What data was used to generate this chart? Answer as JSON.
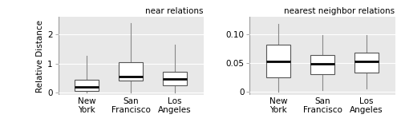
{
  "title_left": "near relations",
  "title_right": "nearest neighbor relations",
  "ylabel": "Relative Distance",
  "categories": [
    "New\nYork",
    "San\nFrancisco",
    "Los\nAngeles"
  ],
  "bg_color": "#e8e8e8",
  "box_facecolor": "white",
  "median_color": "black",
  "box_edge_color": "#555555",
  "whisker_color": "#888888",
  "left_boxes": [
    {
      "q1": 0.07,
      "median": 0.2,
      "q3": 0.44,
      "whislo": 0.0,
      "whishi": 1.25
    },
    {
      "q1": 0.4,
      "median": 0.54,
      "q3": 1.05,
      "whislo": 0.0,
      "whishi": 2.38
    },
    {
      "q1": 0.26,
      "median": 0.47,
      "q3": 0.72,
      "whislo": 0.0,
      "whishi": 1.65
    }
  ],
  "right_boxes": [
    {
      "q1": 0.024,
      "median": 0.052,
      "q3": 0.082,
      "whislo": 0.0,
      "whishi": 0.118
    },
    {
      "q1": 0.03,
      "median": 0.048,
      "q3": 0.063,
      "whislo": 0.003,
      "whishi": 0.098
    },
    {
      "q1": 0.033,
      "median": 0.052,
      "q3": 0.068,
      "whislo": 0.005,
      "whishi": 0.098
    }
  ],
  "left_yticks": [
    0,
    1,
    2
  ],
  "right_yticks": [
    0,
    0.05,
    0.1
  ],
  "left_ylim": [
    -0.08,
    2.6
  ],
  "right_ylim": [
    -0.006,
    0.13
  ]
}
